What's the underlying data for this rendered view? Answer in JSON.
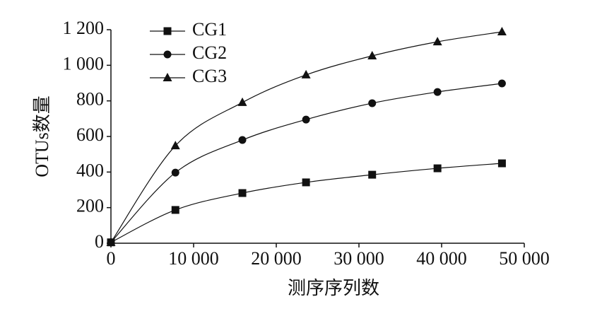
{
  "chart_data": {
    "type": "line",
    "xlabel": "测序序列数",
    "ylabel": "OTUs数量",
    "xlim": [
      0,
      50000
    ],
    "xticks": [
      0,
      {
        "value": 10000,
        "label": "10 000"
      },
      {
        "value": 20000,
        "label": "20 000"
      },
      {
        "value": 30000,
        "label": "30 000"
      },
      {
        "value": 40000,
        "label": "40 000"
      },
      {
        "value": 50000,
        "label": "50 000"
      }
    ],
    "ylim": [
      0,
      1200
    ],
    "yticks": [
      0,
      200,
      400,
      600,
      800,
      {
        "value": 1000,
        "label": "1 000"
      },
      {
        "value": 1200,
        "label": "1 200"
      }
    ],
    "x": [
      0,
      7800,
      15900,
      23600,
      31600,
      39500,
      47300
    ],
    "series": [
      {
        "name": "CG1",
        "color": "#111111",
        "marker": "square",
        "values": [
          5,
          187,
          282,
          342,
          385,
          421,
          449
        ]
      },
      {
        "name": "CG2",
        "color": "#111111",
        "marker": "circle",
        "values": [
          5,
          397,
          580,
          695,
          787,
          850,
          898
        ]
      },
      {
        "name": "CG3",
        "color": "#111111",
        "marker": "triangle",
        "values": [
          5,
          548,
          791,
          946,
          1053,
          1132,
          1188
        ]
      }
    ],
    "legend": "upper left"
  }
}
